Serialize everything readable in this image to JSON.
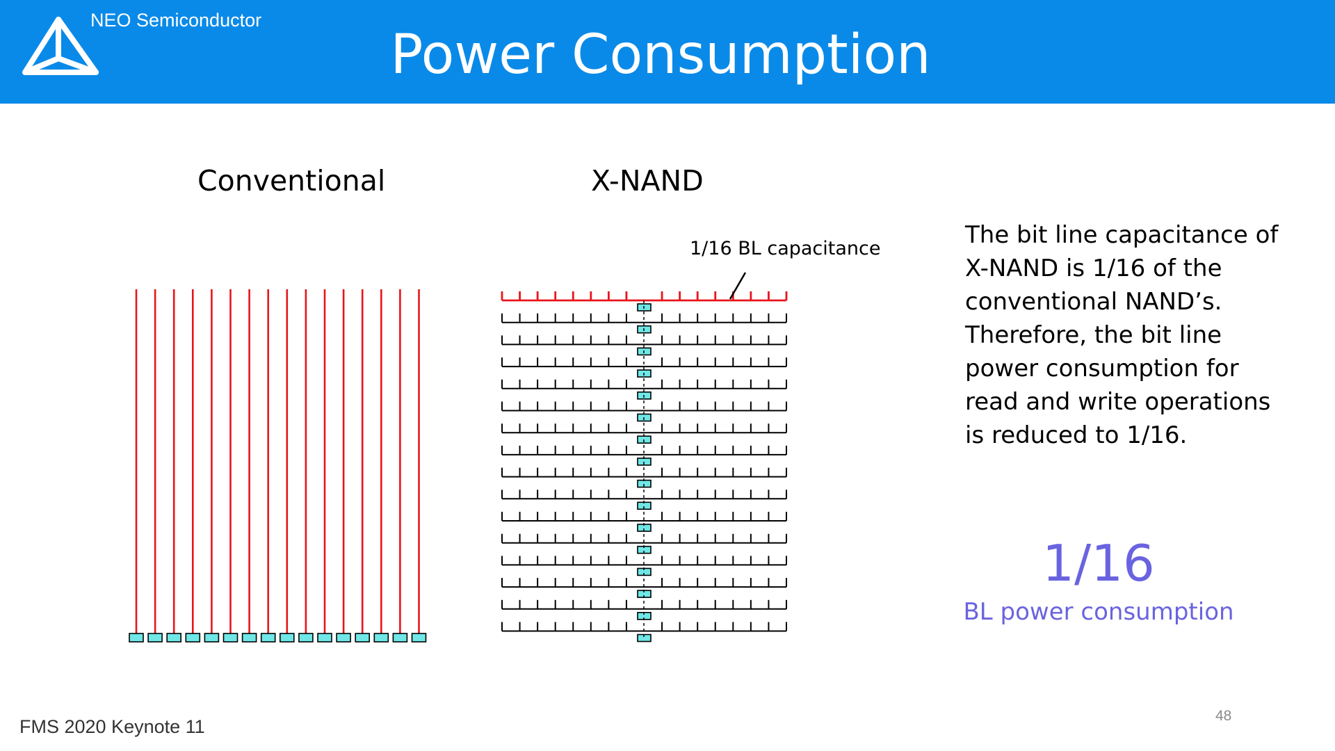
{
  "header": {
    "company": "NEO Semiconductor",
    "title": "Power Consumption",
    "background_color": "#0a8ae8",
    "logo_icon": "tetrahedron-logo-icon"
  },
  "panels": {
    "conventional": {
      "title": "Conventional",
      "bit_line_count": 16,
      "bit_line_color": "#e8141c",
      "page_buffer_color": "#6fe7e7"
    },
    "xnand": {
      "title": "X-NAND",
      "segment_count": 16,
      "highlighted_segment_color": "#e8141c",
      "segment_color": "#000000",
      "page_buffer_color": "#6fe7e7",
      "annotation": "1/16 BL capacitance"
    }
  },
  "description": "The bit line capacitance of X-NAND is 1/16 of the conventional NAND’s. Therefore, the bit line power consumption for read and write operations is reduced to 1/16.",
  "highlight": {
    "value": "1/16",
    "label": "BL power consumption",
    "color": "#6a63e0"
  },
  "footer": {
    "event": "FMS 2020 Keynote 11",
    "page_number": "48"
  }
}
